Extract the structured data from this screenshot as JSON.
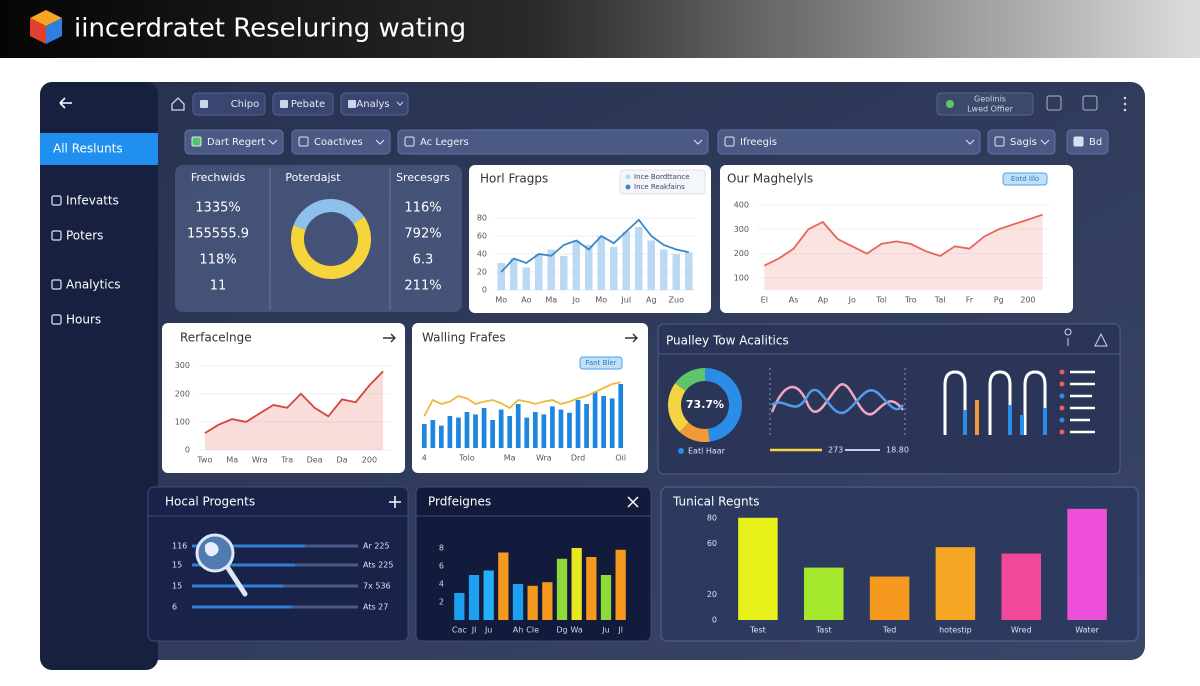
{
  "header": {
    "title": "iincerdratet Reseluring wating"
  },
  "sidebar": {
    "items": [
      "All Reslunts",
      "Infevatts",
      "Poters",
      "Analytics",
      "Hours"
    ]
  },
  "toolbar": {
    "buttons": [
      "Chipo",
      "Pebate",
      "Analys"
    ],
    "status": [
      "Geolinis",
      "Lwed Offier"
    ]
  },
  "filters": [
    "Dart Regert",
    "Coactives",
    "Ac Legers",
    "Ifreegis",
    "Sagis",
    "Bd"
  ],
  "stats": {
    "headers": [
      "Frechwids",
      "Poterdajst",
      "Srecesgrs"
    ],
    "left": [
      "1335%",
      "155555.9",
      "118%",
      "11"
    ],
    "right": [
      "116%",
      "792%",
      "6.3",
      "211%"
    ]
  },
  "panels": {
    "analytics": {
      "title": "Pualley Tow Acalitics",
      "wave_labels": [
        "273",
        "18.80"
      ]
    }
  },
  "chart_data": [
    {
      "type": "donut",
      "values": [
        35,
        65
      ],
      "colors": [
        "#8ec0ec",
        "#f5d43c"
      ]
    },
    {
      "type": "combo",
      "title": "Horl Fragps",
      "categories": [
        "Mo",
        null,
        "Ao",
        null,
        "Ma",
        null,
        "Jo",
        null,
        "Mo",
        null,
        "Jul",
        null,
        "Ag",
        null,
        "Zuo",
        null
      ],
      "series": [
        {
          "name": "Ince Bordttance",
          "kind": "bar",
          "color": "#bcd9f3",
          "values": [
            30,
            35,
            25,
            40,
            45,
            38,
            55,
            50,
            60,
            48,
            65,
            70,
            55,
            45,
            40,
            42
          ]
        },
        {
          "name": "Ince Reakfains",
          "kind": "line",
          "color": "#3c86c9",
          "values": [
            20,
            35,
            30,
            40,
            38,
            50,
            55,
            45,
            60,
            52,
            65,
            78,
            60,
            50,
            45,
            42
          ]
        }
      ],
      "ylim": [
        0,
        100
      ],
      "yticks": [
        0,
        20,
        40,
        60,
        80
      ],
      "grid": true
    },
    {
      "type": "area",
      "title": "Our Maghelyls",
      "badge": "Eotd Illo",
      "categories": [
        "El",
        null,
        "As",
        null,
        "Ap",
        null,
        "Jo",
        null,
        "Tol",
        null,
        "Tro",
        null,
        "Tal",
        null,
        "Fr",
        null,
        "Pg",
        null,
        "200",
        null
      ],
      "values": [
        150,
        180,
        220,
        300,
        330,
        260,
        230,
        200,
        240,
        250,
        240,
        210,
        190,
        230,
        220,
        270,
        300,
        320,
        340,
        360
      ],
      "color": "#e8655a",
      "ylim": [
        50,
        400
      ],
      "yticks": [
        100,
        200,
        300,
        400
      ],
      "grid": true
    },
    {
      "type": "area",
      "title": "Rerfacelnge",
      "categories": [
        "Two",
        null,
        "Ma",
        null,
        "Wra",
        null,
        "Tra",
        null,
        "Dea",
        null,
        "Da",
        null,
        "200",
        null
      ],
      "values": [
        60,
        90,
        110,
        100,
        130,
        160,
        150,
        200,
        150,
        120,
        180,
        170,
        230,
        280
      ],
      "color": "#d9443a",
      "ylim": [
        0,
        320
      ],
      "yticks": [
        0,
        100,
        200,
        300
      ],
      "grid": true
    },
    {
      "type": "combo",
      "title": "Walling Frafes",
      "badge": "Fant Bler",
      "categories": [
        "4",
        null,
        null,
        null,
        null,
        "Tolo",
        null,
        null,
        null,
        null,
        "Ma",
        null,
        null,
        null,
        "Wra",
        null,
        null,
        null,
        "Drd",
        null,
        null,
        null,
        null,
        "Oil"
      ],
      "series": [
        {
          "kind": "bar",
          "color": "#1f86e0",
          "values": [
            30,
            35,
            28,
            40,
            38,
            45,
            42,
            50,
            35,
            48,
            40,
            55,
            38,
            45,
            42,
            52,
            48,
            44,
            60,
            55,
            70,
            65,
            62,
            80
          ]
        },
        {
          "kind": "line",
          "color": "#f0b93a",
          "values": [
            40,
            60,
            55,
            58,
            65,
            62,
            55,
            58,
            60,
            56,
            50,
            60,
            58,
            55,
            58,
            60,
            55,
            58,
            62,
            65,
            70,
            75,
            80,
            82
          ]
        }
      ],
      "ylim": [
        0,
        100
      ]
    },
    {
      "type": "donut",
      "values": [
        48,
        14,
        23,
        15
      ],
      "colors": [
        "#2b8de8",
        "#f29a38",
        "#f4d442",
        "#5fc46a"
      ],
      "center_label": "73.7%",
      "legend": "Eatl Haar"
    },
    {
      "type": "progress",
      "title": "Hocal Progents",
      "categories": [
        "116",
        "15",
        "15",
        "6"
      ],
      "values": [
        68,
        62,
        55,
        60
      ],
      "end_labels": [
        "Ar 225",
        "Ats 225",
        "7x 536",
        "Ats 27"
      ],
      "xlim": [
        0,
        100
      ],
      "color": "#2f7fd6"
    },
    {
      "type": "bar",
      "title": "Prdfeignes",
      "categories": [
        "Cac",
        "Jl",
        "Ju",
        null,
        "Ah",
        "Cle",
        null,
        "Dg",
        "Wa",
        null,
        "Ju",
        "Jl"
      ],
      "values": [
        3,
        5,
        5.5,
        7.5,
        4,
        3.8,
        4.2,
        6.8,
        8,
        7,
        5,
        7.8
      ],
      "colors": [
        "#1ea0f0",
        "#1ea0f0",
        "#25aef5",
        "#f59a1e",
        "#1ea0f0",
        "#f59a1e",
        "#f59a1e",
        "#8fd93a",
        "#e8e81e",
        "#f59a1e",
        "#8fd93a",
        "#f59a1e"
      ],
      "ylim": [
        0,
        10
      ],
      "yticks": [
        2,
        4,
        6,
        8
      ]
    },
    {
      "type": "bar",
      "title": "Tunical Regnts",
      "categories": [
        "Test",
        "Tast",
        "Ted",
        "hotestip",
        "Wred",
        "Water"
      ],
      "values": [
        80,
        41,
        34,
        57,
        52,
        87
      ],
      "colors": [
        "#e8f21a",
        "#a6e82e",
        "#f59a1e",
        "#f5a622",
        "#f2479a",
        "#ee4fd8"
      ],
      "ylim": [
        0,
        90
      ],
      "yticks": [
        0,
        20,
        60,
        80
      ]
    }
  ]
}
